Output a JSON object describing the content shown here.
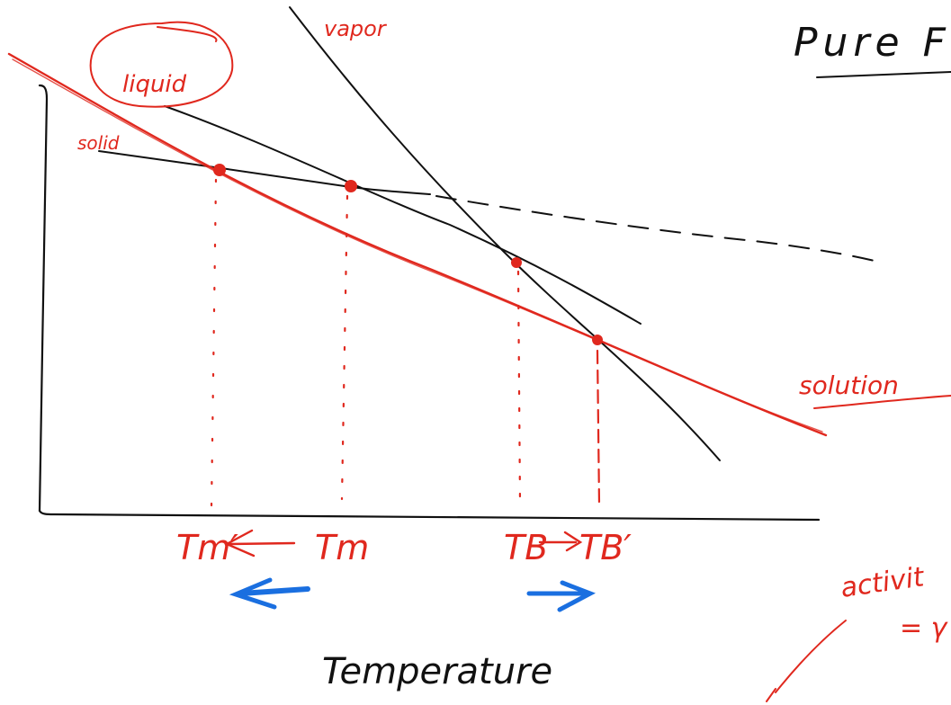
{
  "page": {
    "title": "Pure Fl"
  },
  "labels": {
    "vapor": "vapor",
    "liquid": "liquid",
    "solid": "solid",
    "solution": "solution",
    "x_axis": "Temperature",
    "tm_prime": "Tm′",
    "tm": "Tm",
    "tb": "TB",
    "tb_prime": "TB′",
    "activity_line1": "activit",
    "activity_line2": "= γ"
  },
  "colors": {
    "ink": "#111111",
    "red": "#e0281e",
    "blue": "#1a6fe0",
    "background": "#ffffff"
  }
}
